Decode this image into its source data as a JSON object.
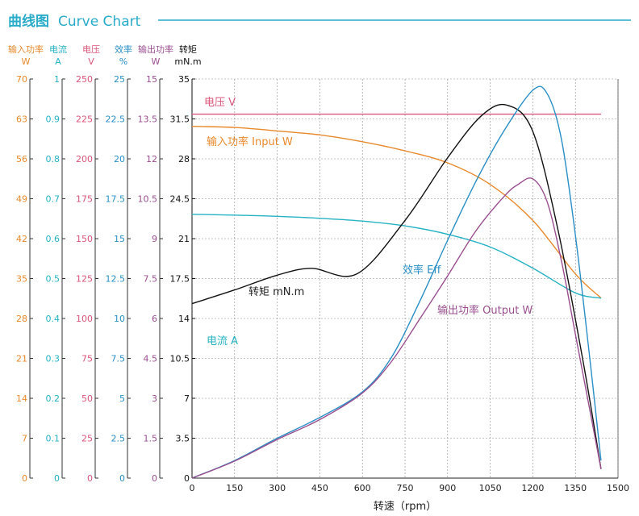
{
  "header": {
    "title_cn": "曲线图",
    "title_en": "Curve Chart"
  },
  "colors": {
    "accent": "#29abc9",
    "input_power": "#e8892b",
    "current": "#25b2c4",
    "voltage": "#d9557a",
    "efficiency": "#2a8fc6",
    "output_power": "#9a4e8f",
    "torque": "#111111",
    "grid": "#777777"
  },
  "chart_data": {
    "type": "line",
    "title": "曲线图 Curve Chart",
    "xlabel": "转速（rpm）",
    "xlim": [
      0,
      1500
    ],
    "x_ticks": [
      "0",
      "150",
      "300",
      "450",
      "600",
      "750",
      "900",
      "1050",
      "1200",
      "1350",
      "1500"
    ],
    "axes": [
      {
        "id": "input_power",
        "name": "输入功率",
        "unit": "W",
        "color": "#e8892b",
        "min": 0,
        "max": 70,
        "ticks": [
          "0",
          "7",
          "14",
          "21",
          "28",
          "35",
          "42",
          "49",
          "56",
          "63",
          "70"
        ]
      },
      {
        "id": "current",
        "name": "电流",
        "unit": "A",
        "color": "#25b2c4",
        "min": 0,
        "max": 1,
        "ticks": [
          "0",
          "0.1",
          "0.2",
          "0.3",
          "0.4",
          "0.5",
          "0.6",
          "0.7",
          "0.8",
          "0.9",
          "1"
        ]
      },
      {
        "id": "voltage",
        "name": "电压",
        "unit": "V",
        "color": "#d9557a",
        "min": 0,
        "max": 250,
        "ticks": [
          "0",
          "25",
          "50",
          "75",
          "100",
          "125",
          "150",
          "175",
          "200",
          "225",
          "250"
        ]
      },
      {
        "id": "efficiency",
        "name": "效率",
        "unit": "%",
        "color": "#2a8fc6",
        "min": 0,
        "max": 25,
        "ticks": [
          "0",
          "2.5",
          "5",
          "7.5",
          "10",
          "12.5",
          "15",
          "17.5",
          "20",
          "22.5",
          "25"
        ]
      },
      {
        "id": "output_power",
        "name": "输出功率",
        "unit": "W",
        "color": "#9a4e8f",
        "min": 0,
        "max": 15,
        "ticks": [
          "0",
          "1.5",
          "3",
          "4.5",
          "6",
          "7.5",
          "9",
          "10.5",
          "12",
          "13.5",
          "15"
        ]
      },
      {
        "id": "torque",
        "name": "转矩",
        "unit": "mN.m",
        "color": "#111111",
        "min": 0,
        "max": 35,
        "ticks": [
          "0",
          "3.5",
          "7",
          "10.5",
          "14",
          "17.5",
          "21",
          "24.5",
          "28",
          "31.5",
          "35"
        ]
      }
    ],
    "series": [
      {
        "id": "voltage",
        "name": "电压 V",
        "axis": "voltage",
        "color": "#d9557a",
        "x": [
          0,
          1440
        ],
        "y": [
          228,
          228
        ]
      },
      {
        "id": "input_power",
        "name": "输入功率 Input W",
        "axis": "input_power",
        "color": "#e8892b",
        "x": [
          0,
          150,
          300,
          450,
          600,
          750,
          900,
          1050,
          1200,
          1350,
          1440
        ],
        "y": [
          61.7,
          61.5,
          60.9,
          60.2,
          59.0,
          57.4,
          55.3,
          51.5,
          45.2,
          35.8,
          31.6
        ]
      },
      {
        "id": "current",
        "name": "电流 A",
        "axis": "current",
        "color": "#25b2c4",
        "x": [
          0,
          150,
          300,
          450,
          600,
          750,
          900,
          1050,
          1200,
          1350,
          1440
        ],
        "y": [
          0.661,
          0.659,
          0.656,
          0.651,
          0.644,
          0.632,
          0.611,
          0.579,
          0.526,
          0.464,
          0.451
        ]
      },
      {
        "id": "torque",
        "name": "转矩 mN.m",
        "axis": "torque",
        "color": "#111111",
        "x": [
          0,
          150,
          300,
          420,
          580,
          750,
          900,
          1020,
          1110,
          1200,
          1290,
          1380,
          1440
        ],
        "y": [
          15.3,
          16.5,
          17.8,
          18.4,
          17.9,
          22.6,
          28.1,
          31.8,
          32.7,
          30.4,
          21.6,
          9.8,
          0.8
        ]
      },
      {
        "id": "efficiency",
        "name": "效率 Eff",
        "axis": "efficiency",
        "color": "#2a8fc6",
        "x": [
          0,
          150,
          300,
          450,
          600,
          700,
          800,
          900,
          1000,
          1100,
          1200,
          1250,
          1300,
          1350,
          1400,
          1440
        ],
        "y": [
          0,
          1.1,
          2.5,
          3.8,
          5.4,
          7.5,
          11.0,
          14.9,
          18.6,
          21.8,
          24.3,
          24.1,
          21.3,
          15.2,
          7.6,
          1.1
        ]
      },
      {
        "id": "output_power",
        "name": "输出功率 Output W",
        "axis": "output_power",
        "color": "#9a4e8f",
        "x": [
          0,
          150,
          300,
          450,
          600,
          700,
          800,
          900,
          1000,
          1100,
          1150,
          1200,
          1250,
          1300,
          1350,
          1400,
          1440
        ],
        "y": [
          0,
          0.64,
          1.45,
          2.2,
          3.2,
          4.35,
          5.95,
          7.6,
          9.3,
          10.6,
          11.05,
          11.25,
          10.4,
          8.2,
          5.4,
          2.6,
          0.35
        ]
      }
    ],
    "annotations": [
      {
        "series": "voltage",
        "text": "电压 V"
      },
      {
        "series": "input_power",
        "text": "输入功率 Input W"
      },
      {
        "series": "torque",
        "text": "转矩 mN.m"
      },
      {
        "series": "efficiency",
        "text": "效率 Eff"
      },
      {
        "series": "output_power",
        "text": "输出功率 Output W"
      },
      {
        "series": "current",
        "text": "电流 A"
      }
    ],
    "grid": true
  }
}
